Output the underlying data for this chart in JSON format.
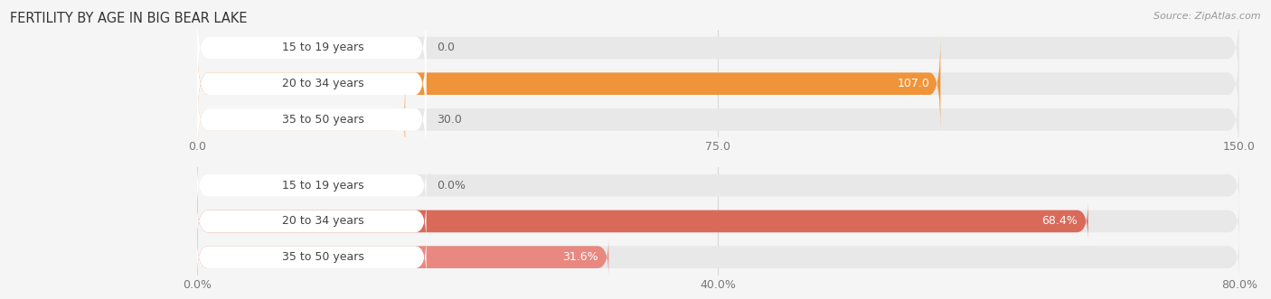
{
  "title": "Female Fertility by Age in Big Bear Lake",
  "title_display": "FERTILITY BY AGE IN BIG BEAR LAKE",
  "source": "Source: ZipAtlas.com",
  "chart1": {
    "categories": [
      "15 to 19 years",
      "20 to 34 years",
      "35 to 50 years"
    ],
    "values": [
      0.0,
      107.0,
      30.0
    ],
    "xlim": [
      0,
      150.0
    ],
    "xticks": [
      0.0,
      75.0,
      150.0
    ],
    "xtick_labels": [
      "0.0",
      "75.0",
      "150.0"
    ],
    "bar_colors": [
      "#f5c8a0",
      "#f0943a",
      "#f5c8a0"
    ],
    "bar_bg_color": "#e8e8e8",
    "value_threshold": 0.25
  },
  "chart2": {
    "categories": [
      "15 to 19 years",
      "20 to 34 years",
      "35 to 50 years"
    ],
    "values": [
      0.0,
      68.4,
      31.6
    ],
    "xlim": [
      0,
      80.0
    ],
    "xticks": [
      0.0,
      40.0,
      80.0
    ],
    "xtick_labels": [
      "0.0%",
      "40.0%",
      "80.0%"
    ],
    "bar_colors": [
      "#f0aaaa",
      "#d96a5a",
      "#e88880"
    ],
    "bar_bg_color": "#e8e8e8",
    "value_threshold": 0.25
  },
  "background_color": "#f5f5f5",
  "bar_height": 0.62,
  "label_fontsize": 9,
  "category_fontsize": 9,
  "title_fontsize": 10.5,
  "tick_fontsize": 9,
  "pill_bg": "#ffffff",
  "pill_text_color": "#444444",
  "value_inside_color": "#ffffff",
  "value_outside_color": "#666666"
}
